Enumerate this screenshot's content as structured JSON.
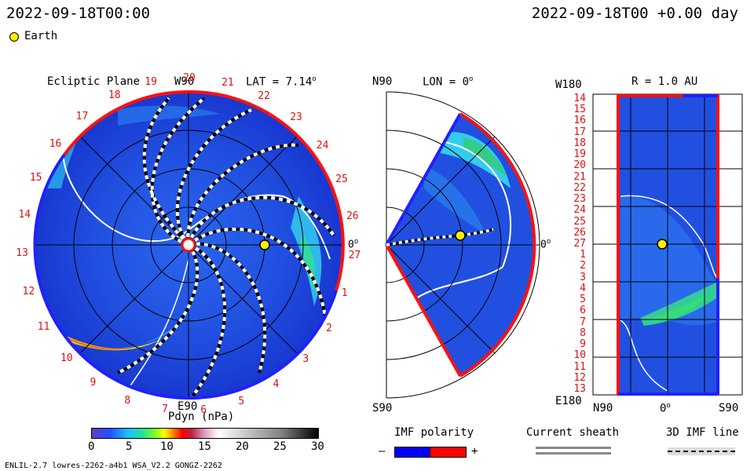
{
  "header": {
    "datetime": "2022-09-18T00:00",
    "right_title": "2022-09-18T00 +0.00 day"
  },
  "legend": {
    "earth_label": "Earth",
    "earth_color": "#ffee00"
  },
  "ecliptic": {
    "title": "Ecliptic Plane",
    "lat_label": "LAT = 7.14",
    "lat_sup": "o",
    "top_label": "W90",
    "bottom_label": "E90",
    "zero_label": "0",
    "zero_sup": "o",
    "carrington": [
      "19",
      "20",
      "21",
      "22",
      "23",
      "24",
      "25",
      "26",
      "27",
      "1",
      "2",
      "3",
      "4",
      "5",
      "6",
      "7",
      "8",
      "9",
      "10",
      "11",
      "12",
      "13",
      "14",
      "15",
      "16",
      "17",
      "18"
    ]
  },
  "meridional": {
    "top_label": "N90",
    "lon_label": "LON = 0",
    "lon_sup": "o",
    "bottom_label": "S90",
    "zero_label": "0",
    "zero_sup": "o"
  },
  "radial": {
    "r_label": "R = 1.0 AU",
    "top_left_label": "W180",
    "bottom_left_label": "E180",
    "x_labels": [
      "N90",
      "0",
      "S90"
    ],
    "x_zero_sup": "o",
    "rows": [
      "14",
      "15",
      "16",
      "17",
      "18",
      "19",
      "20",
      "21",
      "22",
      "23",
      "24",
      "25",
      "26",
      "27",
      "1",
      "2",
      "3",
      "4",
      "5",
      "6",
      "7",
      "8",
      "9",
      "10",
      "11",
      "12",
      "13"
    ]
  },
  "colorbar": {
    "title": "Pdyn (nPa)",
    "ticks": [
      "0",
      "5",
      "10",
      "15",
      "20",
      "25",
      "30"
    ]
  },
  "imf": {
    "title": "IMF polarity",
    "minus": "–",
    "plus": "+",
    "neg_color": "#0000ff",
    "pos_color": "#ff0000"
  },
  "sheath": {
    "title": "Current sheath"
  },
  "imf_line": {
    "title": "3D IMF line"
  },
  "footer": {
    "text": "ENLIL-2.7 lowres-2262-a4b1 WSA_V2.2 GONGZ-2262"
  }
}
